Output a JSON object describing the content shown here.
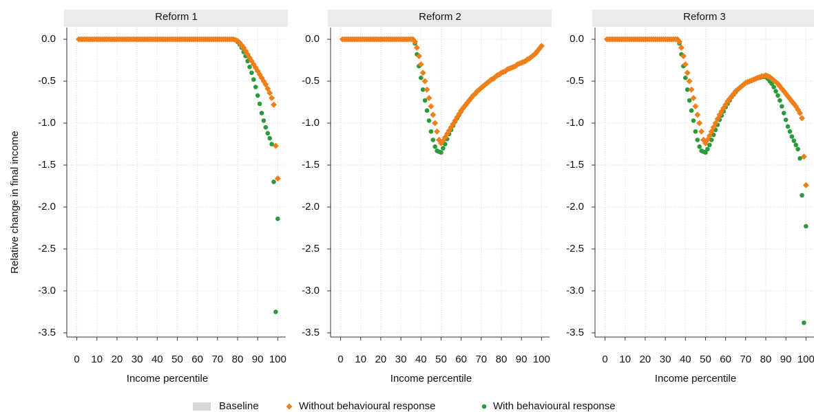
{
  "chart_data": [
    {
      "type": "scatter",
      "title": "Reform 1",
      "xlabel": "Income percentile",
      "ylabel": "Relative change in final income",
      "xlim": [
        -5,
        104
      ],
      "ylim": [
        -3.55,
        0.14
      ],
      "grid": true,
      "xticks": [
        0,
        10,
        20,
        30,
        40,
        50,
        60,
        70,
        80,
        90,
        100
      ],
      "yticks": [
        {
          "value": 0,
          "label": "0.0"
        },
        -0.5,
        {
          "value": -1,
          "label": "-1.0"
        },
        -1.5,
        {
          "value": -2,
          "label": "-2.0"
        },
        -2.5,
        {
          "value": -3,
          "label": "-3.0"
        },
        -3.5
      ],
      "x": [
        1,
        2,
        3,
        4,
        5,
        6,
        7,
        8,
        9,
        10,
        11,
        12,
        13,
        14,
        15,
        16,
        17,
        18,
        19,
        20,
        21,
        22,
        23,
        24,
        25,
        26,
        27,
        28,
        29,
        30,
        31,
        32,
        33,
        34,
        35,
        36,
        37,
        38,
        39,
        40,
        41,
        42,
        43,
        44,
        45,
        46,
        47,
        48,
        49,
        50,
        51,
        52,
        53,
        54,
        55,
        56,
        57,
        58,
        59,
        60,
        61,
        62,
        63,
        64,
        65,
        66,
        67,
        68,
        69,
        70,
        71,
        72,
        73,
        74,
        75,
        76,
        77,
        78,
        79,
        80,
        81,
        82,
        83,
        84,
        85,
        86,
        87,
        88,
        89,
        90,
        91,
        92,
        93,
        94,
        95,
        96,
        97,
        98,
        99,
        100
      ],
      "series": [
        {
          "name": "Without behavioural response",
          "color": "#f07f1a",
          "marker": "diamond",
          "values": [
            0,
            0,
            0,
            0,
            0,
            0,
            0,
            0,
            0,
            0,
            0,
            0,
            0,
            0,
            0,
            0,
            0,
            0,
            0,
            0,
            0,
            0,
            0,
            0,
            0,
            0,
            0,
            0,
            0,
            0,
            0,
            0,
            0,
            0,
            0,
            0,
            0,
            0,
            0,
            0,
            0,
            0,
            0,
            0,
            0,
            0,
            0,
            0,
            0,
            0,
            0,
            0,
            0,
            0,
            0,
            0,
            0,
            0,
            0,
            0,
            0,
            0,
            0,
            0,
            0,
            0,
            0,
            0,
            0,
            0,
            0,
            0,
            0,
            0,
            0,
            0,
            0,
            0,
            -0.01,
            -0.02,
            -0.04,
            -0.07,
            -0.1,
            -0.14,
            -0.18,
            -0.22,
            -0.26,
            -0.3,
            -0.34,
            -0.38,
            -0.42,
            -0.46,
            -0.5,
            -0.54,
            -0.59,
            -0.64,
            -0.7,
            -0.78,
            -1.27,
            -1.66
          ]
        },
        {
          "name": "With behavioural response",
          "color": "#2a9a3c",
          "marker": "circle",
          "values": [
            0,
            0,
            0,
            0,
            0,
            0,
            0,
            0,
            0,
            0,
            0,
            0,
            0,
            0,
            0,
            0,
            0,
            0,
            0,
            0,
            0,
            0,
            0,
            0,
            0,
            0,
            0,
            0,
            0,
            0,
            0,
            0,
            0,
            0,
            0,
            0,
            0,
            0,
            0,
            0,
            0,
            0,
            0,
            0,
            0,
            0,
            0,
            0,
            0,
            0,
            0,
            0,
            0,
            0,
            0,
            0,
            0,
            0,
            0,
            0,
            0,
            0,
            0,
            0,
            0,
            0,
            0,
            0,
            0,
            0,
            0,
            0,
            0,
            0,
            0,
            0,
            0,
            0,
            -0.01,
            -0.03,
            -0.06,
            -0.1,
            -0.15,
            -0.2,
            -0.26,
            -0.33,
            -0.4,
            -0.48,
            -0.57,
            -0.67,
            -0.77,
            -0.88,
            -0.97,
            -1.05,
            -1.12,
            -1.18,
            -1.25,
            -1.7,
            -3.25,
            -2.14
          ]
        }
      ]
    },
    {
      "type": "scatter",
      "title": "Reform 2",
      "xlabel": "Income percentile",
      "xlim": [
        -5,
        104
      ],
      "ylim": [
        -3.55,
        0.14
      ],
      "grid": true,
      "xticks": [
        0,
        10,
        20,
        30,
        40,
        50,
        60,
        70,
        80,
        90,
        100
      ],
      "yticks": [
        {
          "value": 0,
          "label": "0.0"
        },
        -0.5,
        {
          "value": -1,
          "label": "-1.0"
        },
        -1.5,
        {
          "value": -2,
          "label": "-2.0"
        },
        -2.5,
        {
          "value": -3,
          "label": "-3.0"
        },
        -3.5
      ],
      "x": [
        1,
        2,
        3,
        4,
        5,
        6,
        7,
        8,
        9,
        10,
        11,
        12,
        13,
        14,
        15,
        16,
        17,
        18,
        19,
        20,
        21,
        22,
        23,
        24,
        25,
        26,
        27,
        28,
        29,
        30,
        31,
        32,
        33,
        34,
        35,
        36,
        37,
        38,
        39,
        40,
        41,
        42,
        43,
        44,
        45,
        46,
        47,
        48,
        49,
        50,
        51,
        52,
        53,
        54,
        55,
        56,
        57,
        58,
        59,
        60,
        61,
        62,
        63,
        64,
        65,
        66,
        67,
        68,
        69,
        70,
        71,
        72,
        73,
        74,
        75,
        76,
        77,
        78,
        79,
        80,
        81,
        82,
        83,
        84,
        85,
        86,
        87,
        88,
        89,
        90,
        91,
        92,
        93,
        94,
        95,
        96,
        97,
        98,
        99,
        100
      ],
      "series": [
        {
          "name": "Without behavioural response",
          "color": "#f07f1a",
          "marker": "diamond",
          "values": [
            0,
            0,
            0,
            0,
            0,
            0,
            0,
            0,
            0,
            0,
            0,
            0,
            0,
            0,
            0,
            0,
            0,
            0,
            0,
            0,
            0,
            0,
            0,
            0,
            0,
            0,
            0,
            0,
            0,
            0,
            0,
            0,
            0,
            0,
            0,
            0,
            -0.03,
            -0.1,
            -0.2,
            -0.3,
            -0.4,
            -0.5,
            -0.6,
            -0.7,
            -0.8,
            -0.9,
            -1.0,
            -1.1,
            -1.2,
            -1.24,
            -1.21,
            -1.17,
            -1.13,
            -1.09,
            -1.05,
            -1.01,
            -0.97,
            -0.93,
            -0.89,
            -0.85,
            -0.82,
            -0.79,
            -0.76,
            -0.73,
            -0.7,
            -0.67,
            -0.65,
            -0.62,
            -0.6,
            -0.58,
            -0.56,
            -0.54,
            -0.52,
            -0.5,
            -0.48,
            -0.47,
            -0.45,
            -0.43,
            -0.42,
            -0.4,
            -0.39,
            -0.38,
            -0.36,
            -0.35,
            -0.34,
            -0.33,
            -0.32,
            -0.3,
            -0.29,
            -0.28,
            -0.27,
            -0.26,
            -0.24,
            -0.23,
            -0.21,
            -0.19,
            -0.17,
            -0.14,
            -0.11,
            -0.08
          ]
        },
        {
          "name": "With behavioural response",
          "color": "#2a9a3c",
          "marker": "circle",
          "values": [
            0,
            0,
            0,
            0,
            0,
            0,
            0,
            0,
            0,
            0,
            0,
            0,
            0,
            0,
            0,
            0,
            0,
            0,
            0,
            0,
            0,
            0,
            0,
            0,
            0,
            0,
            0,
            0,
            0,
            0,
            0,
            0,
            0,
            0,
            0,
            0,
            -0.05,
            -0.18,
            -0.32,
            -0.46,
            -0.6,
            -0.73,
            -0.85,
            -0.97,
            -1.1,
            -1.2,
            -1.28,
            -1.33,
            -1.34,
            -1.35,
            -1.3,
            -1.25,
            -1.19,
            -1.13,
            -1.08,
            -1.03,
            -0.98,
            -0.94,
            -0.9,
            -0.86,
            -0.82,
            -0.79,
            -0.76,
            -0.73,
            -0.7,
            -0.67,
            -0.65,
            -0.62,
            -0.6,
            -0.58,
            -0.56,
            -0.54,
            -0.52,
            -0.5,
            -0.48,
            -0.47,
            -0.45,
            -0.43,
            -0.42,
            -0.4,
            -0.39,
            -0.38,
            -0.36,
            -0.35,
            -0.34,
            -0.33,
            -0.32,
            -0.3,
            -0.29,
            -0.28,
            -0.27,
            -0.26,
            -0.24,
            -0.23,
            -0.21,
            -0.19,
            -0.17,
            -0.14,
            -0.11,
            -0.08
          ]
        }
      ]
    },
    {
      "type": "scatter",
      "title": "Reform 3",
      "xlabel": "Income percentile",
      "xlim": [
        -5,
        104
      ],
      "ylim": [
        -3.55,
        0.14
      ],
      "grid": true,
      "xticks": [
        0,
        10,
        20,
        30,
        40,
        50,
        60,
        70,
        80,
        90,
        100
      ],
      "yticks": [
        {
          "value": 0,
          "label": "0.0"
        },
        -0.5,
        {
          "value": -1,
          "label": "-1.0"
        },
        -1.5,
        {
          "value": -2,
          "label": "-2.0"
        },
        -2.5,
        {
          "value": -3,
          "label": "-3.0"
        },
        -3.5
      ],
      "x": [
        1,
        2,
        3,
        4,
        5,
        6,
        7,
        8,
        9,
        10,
        11,
        12,
        13,
        14,
        15,
        16,
        17,
        18,
        19,
        20,
        21,
        22,
        23,
        24,
        25,
        26,
        27,
        28,
        29,
        30,
        31,
        32,
        33,
        34,
        35,
        36,
        37,
        38,
        39,
        40,
        41,
        42,
        43,
        44,
        45,
        46,
        47,
        48,
        49,
        50,
        51,
        52,
        53,
        54,
        55,
        56,
        57,
        58,
        59,
        60,
        61,
        62,
        63,
        64,
        65,
        66,
        67,
        68,
        69,
        70,
        71,
        72,
        73,
        74,
        75,
        76,
        77,
        78,
        79,
        80,
        81,
        82,
        83,
        84,
        85,
        86,
        87,
        88,
        89,
        90,
        91,
        92,
        93,
        94,
        95,
        96,
        97,
        98,
        99,
        100
      ],
      "series": [
        {
          "name": "Without behavioural response",
          "color": "#f07f1a",
          "marker": "diamond",
          "values": [
            0,
            0,
            0,
            0,
            0,
            0,
            0,
            0,
            0,
            0,
            0,
            0,
            0,
            0,
            0,
            0,
            0,
            0,
            0,
            0,
            0,
            0,
            0,
            0,
            0,
            0,
            0,
            0,
            0,
            0,
            0,
            0,
            0,
            0,
            0,
            0,
            -0.03,
            -0.1,
            -0.2,
            -0.3,
            -0.4,
            -0.5,
            -0.6,
            -0.7,
            -0.8,
            -0.9,
            -1.0,
            -1.1,
            -1.2,
            -1.24,
            -1.2,
            -1.15,
            -1.1,
            -1.05,
            -1.0,
            -0.95,
            -0.9,
            -0.86,
            -0.82,
            -0.78,
            -0.74,
            -0.71,
            -0.68,
            -0.65,
            -0.62,
            -0.6,
            -0.58,
            -0.56,
            -0.54,
            -0.52,
            -0.51,
            -0.5,
            -0.49,
            -0.48,
            -0.47,
            -0.46,
            -0.45,
            -0.44,
            -0.44,
            -0.43,
            -0.44,
            -0.45,
            -0.47,
            -0.49,
            -0.51,
            -0.53,
            -0.56,
            -0.59,
            -0.62,
            -0.65,
            -0.68,
            -0.71,
            -0.74,
            -0.77,
            -0.8,
            -0.84,
            -0.88,
            -0.94,
            -1.4,
            -1.74
          ]
        },
        {
          "name": "With behavioural response",
          "color": "#2a9a3c",
          "marker": "circle",
          "values": [
            0,
            0,
            0,
            0,
            0,
            0,
            0,
            0,
            0,
            0,
            0,
            0,
            0,
            0,
            0,
            0,
            0,
            0,
            0,
            0,
            0,
            0,
            0,
            0,
            0,
            0,
            0,
            0,
            0,
            0,
            0,
            0,
            0,
            0,
            0,
            0,
            -0.05,
            -0.18,
            -0.32,
            -0.46,
            -0.6,
            -0.73,
            -0.85,
            -0.97,
            -1.1,
            -1.2,
            -1.28,
            -1.33,
            -1.34,
            -1.35,
            -1.31,
            -1.26,
            -1.2,
            -1.14,
            -1.08,
            -1.02,
            -0.96,
            -0.91,
            -0.86,
            -0.81,
            -0.77,
            -0.73,
            -0.69,
            -0.66,
            -0.63,
            -0.6,
            -0.58,
            -0.56,
            -0.54,
            -0.52,
            -0.51,
            -0.5,
            -0.49,
            -0.48,
            -0.47,
            -0.46,
            -0.46,
            -0.45,
            -0.45,
            -0.45,
            -0.47,
            -0.5,
            -0.53,
            -0.57,
            -0.62,
            -0.67,
            -0.73,
            -0.8,
            -0.88,
            -0.96,
            -1.04,
            -1.1,
            -1.16,
            -1.21,
            -1.26,
            -1.31,
            -1.42,
            -1.86,
            -3.38,
            -2.23
          ]
        }
      ]
    }
  ],
  "baseline": {
    "name": "Baseline",
    "color": "#d6d6d6"
  }
}
